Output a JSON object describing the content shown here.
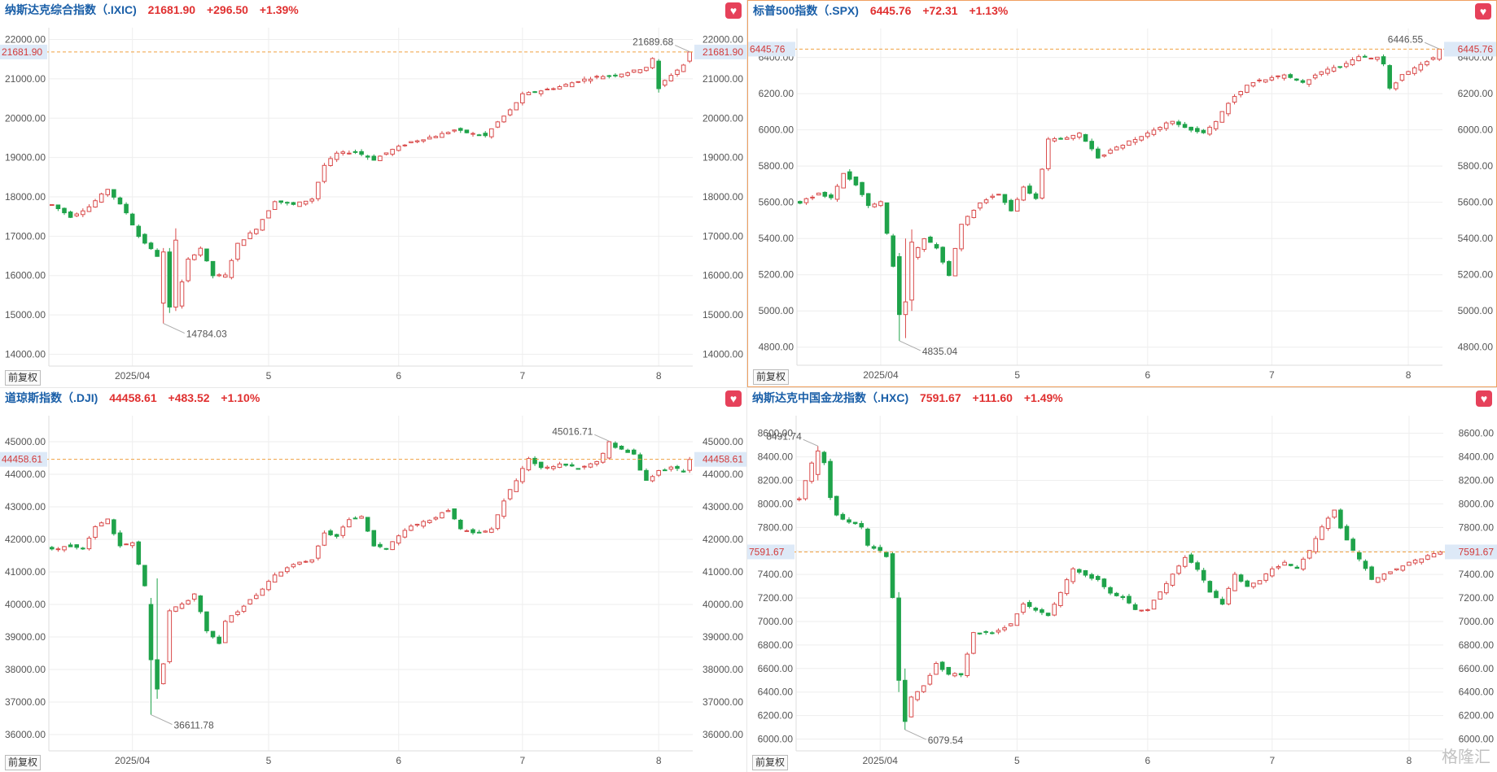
{
  "colors": {
    "up": "#d94a4a",
    "down": "#1fa34a",
    "title_blue": "#1a5fa8",
    "change_red": "#e03030",
    "ref_line": "#f0a040",
    "price_tag_bg": "#dde9f7",
    "grid": "#eeeeee",
    "axis_text": "#555555"
  },
  "buttons": {
    "fav_icon": "heart-icon",
    "adjust_label": "前复权"
  },
  "watermark": "格隆汇",
  "chart_data": [
    {
      "type": "candlestick",
      "name": "纳斯达克综合指数（.IXIC)",
      "price": "21681.90",
      "change": "+296.50",
      "change_pct": "+1.39%",
      "last": 21681.9,
      "ylim": [
        13700,
        22300
      ],
      "yticks": [
        14000,
        15000,
        16000,
        17000,
        18000,
        19000,
        20000,
        21000,
        22000
      ],
      "ytick_labels": [
        "14000.00",
        "15000.00",
        "16000.00",
        "17000.00",
        "18000.00",
        "19000.00",
        "20000.00",
        "21000.00",
        "22000.00"
      ],
      "xticks": [
        {
          "i": 13,
          "label": "2025/04"
        },
        {
          "i": 35,
          "label": "5"
        },
        {
          "i": 56,
          "label": "6"
        },
        {
          "i": 76,
          "label": "7"
        },
        {
          "i": 98,
          "label": "8"
        }
      ],
      "n": 104,
      "high_label": "21689.68",
      "low_label": "14784.03",
      "price_tag": "21681.90",
      "anchors": [
        [
          0,
          17800
        ],
        [
          3,
          17500
        ],
        [
          6,
          17750
        ],
        [
          9,
          18200
        ],
        [
          12,
          17600
        ],
        [
          14,
          17000
        ],
        [
          17,
          16500
        ],
        [
          18,
          15500
        ],
        [
          19,
          16200
        ],
        [
          20,
          15250
        ],
        [
          22,
          16400
        ],
        [
          24,
          16700
        ],
        [
          26,
          16000
        ],
        [
          28,
          16000
        ],
        [
          30,
          16800
        ],
        [
          33,
          17200
        ],
        [
          36,
          17900
        ],
        [
          39,
          17800
        ],
        [
          42,
          17950
        ],
        [
          44,
          18800
        ],
        [
          46,
          19100
        ],
        [
          49,
          19150
        ],
        [
          52,
          18950
        ],
        [
          55,
          19200
        ],
        [
          58,
          19400
        ],
        [
          62,
          19550
        ],
        [
          65,
          19700
        ],
        [
          68,
          19600
        ],
        [
          70,
          19550
        ],
        [
          72,
          19900
        ],
        [
          74,
          20200
        ],
        [
          76,
          20600
        ],
        [
          79,
          20700
        ],
        [
          82,
          20800
        ],
        [
          85,
          20950
        ],
        [
          88,
          21050
        ],
        [
          91,
          21100
        ],
        [
          94,
          21200
        ],
        [
          96,
          21300
        ],
        [
          97,
          21500
        ],
        [
          98,
          20800
        ],
        [
          100,
          21100
        ],
        [
          102,
          21350
        ],
        [
          103,
          21681.9
        ]
      ],
      "specials": {
        "18": [
          15300,
          16600,
          14784.03,
          16700
        ],
        "19": [
          16600,
          15200,
          15050,
          16700
        ],
        "20": [
          15200,
          16900,
          15100,
          17200
        ],
        "98": [
          21450,
          20750,
          20650,
          21500
        ],
        "103": [
          21450,
          21681.9,
          21400,
          21689.68
        ]
      }
    },
    {
      "type": "candlestick",
      "name": "标普500指数（.SPX)",
      "price": "6445.76",
      "change": "+72.31",
      "change_pct": "+1.13%",
      "last": 6445.76,
      "ylim": [
        4700,
        6560
      ],
      "yticks": [
        4800,
        5000,
        5200,
        5400,
        5600,
        5800,
        6000,
        6200,
        6400
      ],
      "ytick_labels": [
        "4800.00",
        "5000.00",
        "5200.00",
        "5400.00",
        "5600.00",
        "5800.00",
        "6000.00",
        "6200.00",
        "6400.00"
      ],
      "xticks": [
        {
          "i": 13,
          "label": "2025/04"
        },
        {
          "i": 35,
          "label": "5"
        },
        {
          "i": 56,
          "label": "6"
        },
        {
          "i": 76,
          "label": "7"
        },
        {
          "i": 98,
          "label": "8"
        }
      ],
      "n": 104,
      "high_label": "6446.55",
      "low_label": "4835.04",
      "price_tag": "6445.76",
      "anchors": [
        [
          0,
          5600
        ],
        [
          3,
          5650
        ],
        [
          5,
          5620
        ],
        [
          7,
          5760
        ],
        [
          9,
          5700
        ],
        [
          11,
          5580
        ],
        [
          13,
          5600
        ],
        [
          15,
          5250
        ],
        [
          16,
          5050
        ],
        [
          17,
          5000
        ],
        [
          18,
          5300
        ],
        [
          20,
          5400
        ],
        [
          22,
          5350
        ],
        [
          24,
          5200
        ],
        [
          26,
          5480
        ],
        [
          29,
          5600
        ],
        [
          32,
          5650
        ],
        [
          34,
          5550
        ],
        [
          36,
          5680
        ],
        [
          38,
          5620
        ],
        [
          40,
          5950
        ],
        [
          42,
          5950
        ],
        [
          45,
          5980
        ],
        [
          48,
          5850
        ],
        [
          51,
          5900
        ],
        [
          54,
          5950
        ],
        [
          57,
          6000
        ],
        [
          60,
          6050
        ],
        [
          63,
          6000
        ],
        [
          65,
          5980
        ],
        [
          67,
          6050
        ],
        [
          69,
          6150
        ],
        [
          72,
          6250
        ],
        [
          75,
          6280
        ],
        [
          78,
          6300
        ],
        [
          81,
          6260
        ],
        [
          84,
          6320
        ],
        [
          87,
          6350
        ],
        [
          90,
          6400
        ],
        [
          93,
          6400
        ],
        [
          94,
          6360
        ],
        [
          95,
          6230
        ],
        [
          97,
          6300
        ],
        [
          100,
          6360
        ],
        [
          102,
          6400
        ],
        [
          103,
          6445.76
        ]
      ],
      "specials": {
        "16": [
          5300,
          4980,
          4835.04,
          5320
        ],
        "17": [
          4980,
          5050,
          4850,
          5400
        ],
        "18": [
          5060,
          5380,
          5000,
          5450
        ],
        "103": [
          6390,
          6445.76,
          6380,
          6446.55
        ]
      }
    },
    {
      "type": "candlestick",
      "name": "道琼斯指数（.DJI)",
      "price": "44458.61",
      "change": "+483.52",
      "change_pct": "+1.10%",
      "last": 44458.61,
      "ylim": [
        35500,
        45800
      ],
      "yticks": [
        36000,
        37000,
        38000,
        39000,
        40000,
        41000,
        42000,
        43000,
        44000,
        45000
      ],
      "ytick_labels": [
        "36000.00",
        "37000.00",
        "38000.00",
        "39000.00",
        "40000.00",
        "41000.00",
        "42000.00",
        "43000.00",
        "44000.00",
        "45000.00"
      ],
      "xticks": [
        {
          "i": 13,
          "label": "2025/04"
        },
        {
          "i": 35,
          "label": "5"
        },
        {
          "i": 56,
          "label": "6"
        },
        {
          "i": 76,
          "label": "7"
        },
        {
          "i": 98,
          "label": "8"
        }
      ],
      "n": 104,
      "high_label": "45016.71",
      "low_label": "36611.78",
      "price_tag": "44458.61",
      "anchors": [
        [
          0,
          41700
        ],
        [
          3,
          41800
        ],
        [
          5,
          41700
        ],
        [
          7,
          42400
        ],
        [
          9,
          42600
        ],
        [
          11,
          41800
        ],
        [
          13,
          41900
        ],
        [
          15,
          40600
        ],
        [
          16,
          38300
        ],
        [
          17,
          37600
        ],
        [
          18,
          38200
        ],
        [
          19,
          39800
        ],
        [
          21,
          40000
        ],
        [
          23,
          40300
        ],
        [
          25,
          39200
        ],
        [
          27,
          38800
        ],
        [
          28,
          39500
        ],
        [
          30,
          39800
        ],
        [
          33,
          40300
        ],
        [
          36,
          40900
        ],
        [
          39,
          41200
        ],
        [
          42,
          41400
        ],
        [
          44,
          42200
        ],
        [
          46,
          42100
        ],
        [
          48,
          42600
        ],
        [
          50,
          42700
        ],
        [
          52,
          41800
        ],
        [
          54,
          41700
        ],
        [
          56,
          42100
        ],
        [
          58,
          42400
        ],
        [
          61,
          42600
        ],
        [
          64,
          42900
        ],
        [
          66,
          42300
        ],
        [
          69,
          42200
        ],
        [
          71,
          42300
        ],
        [
          73,
          43200
        ],
        [
          75,
          43800
        ],
        [
          77,
          44500
        ],
        [
          79,
          44200
        ],
        [
          82,
          44300
        ],
        [
          85,
          44200
        ],
        [
          88,
          44400
        ],
        [
          90,
          44900
        ],
        [
          92,
          44800
        ],
        [
          94,
          44600
        ],
        [
          95,
          44100
        ],
        [
          96,
          43800
        ],
        [
          98,
          44100
        ],
        [
          100,
          44200
        ],
        [
          102,
          44100
        ],
        [
          103,
          44458.61
        ]
      ],
      "specials": {
        "16": [
          40000,
          38300,
          36611.78,
          40200
        ],
        "17": [
          38300,
          37400,
          37100,
          40800
        ],
        "90": [
          44500,
          45000,
          44450,
          45016.71
        ]
      }
    },
    {
      "type": "candlestick",
      "name": "纳斯达克中国金龙指数（.HXC)",
      "price": "7591.67",
      "change": "+111.60",
      "change_pct": "+1.49%",
      "last": 7591.67,
      "ylim": [
        5900,
        8750
      ],
      "yticks": [
        6000,
        6200,
        6400,
        6600,
        6800,
        7000,
        7200,
        7400,
        7600,
        7800,
        8000,
        8200,
        8400,
        8600
      ],
      "ytick_labels": [
        "6000.00",
        "6200.00",
        "6400.00",
        "6600.00",
        "6800.00",
        "7000.00",
        "7200.00",
        "7400.00",
        "7600.00",
        "7800.00",
        "8000.00",
        "8200.00",
        "8400.00",
        "8600.00"
      ],
      "xticks": [
        {
          "i": 13,
          "label": "2025/04"
        },
        {
          "i": 35,
          "label": "5"
        },
        {
          "i": 56,
          "label": "6"
        },
        {
          "i": 76,
          "label": "7"
        },
        {
          "i": 98,
          "label": "8"
        }
      ],
      "n": 104,
      "high_label": "8491.74",
      "low_label": "6079.54",
      "price_tag": "7591.67",
      "anchors": [
        [
          0,
          8050
        ],
        [
          2,
          8350
        ],
        [
          3,
          8450
        ],
        [
          4,
          8350
        ],
        [
          5,
          8050
        ],
        [
          6,
          7900
        ],
        [
          8,
          7850
        ],
        [
          10,
          7800
        ],
        [
          11,
          7650
        ],
        [
          13,
          7600
        ],
        [
          14,
          7560
        ],
        [
          15,
          7200
        ],
        [
          16,
          6500
        ],
        [
          17,
          6200
        ],
        [
          18,
          6350
        ],
        [
          20,
          6450
        ],
        [
          22,
          6650
        ],
        [
          24,
          6550
        ],
        [
          26,
          6550
        ],
        [
          28,
          6900
        ],
        [
          31,
          6900
        ],
        [
          34,
          6980
        ],
        [
          36,
          7150
        ],
        [
          38,
          7100
        ],
        [
          40,
          7050
        ],
        [
          42,
          7250
        ],
        [
          44,
          7450
        ],
        [
          46,
          7400
        ],
        [
          48,
          7350
        ],
        [
          50,
          7250
        ],
        [
          52,
          7200
        ],
        [
          54,
          7100
        ],
        [
          56,
          7100
        ],
        [
          58,
          7250
        ],
        [
          60,
          7400
        ],
        [
          62,
          7550
        ],
        [
          64,
          7450
        ],
        [
          66,
          7250
        ],
        [
          68,
          7150
        ],
        [
          70,
          7400
        ],
        [
          72,
          7300
        ],
        [
          74,
          7350
        ],
        [
          76,
          7450
        ],
        [
          78,
          7500
        ],
        [
          80,
          7450
        ],
        [
          82,
          7600
        ],
        [
          84,
          7800
        ],
        [
          86,
          7950
        ],
        [
          87,
          7800
        ],
        [
          89,
          7600
        ],
        [
          91,
          7450
        ],
        [
          92,
          7350
        ],
        [
          94,
          7400
        ],
        [
          96,
          7450
        ],
        [
          98,
          7500
        ],
        [
          100,
          7540
        ],
        [
          103,
          7591.67
        ]
      ],
      "specials": {
        "3": [
          8250,
          8450,
          8200,
          8491.74
        ],
        "16": [
          7200,
          6500,
          6400,
          7250
        ],
        "17": [
          6500,
          6150,
          6079.54,
          6600
        ]
      }
    }
  ]
}
